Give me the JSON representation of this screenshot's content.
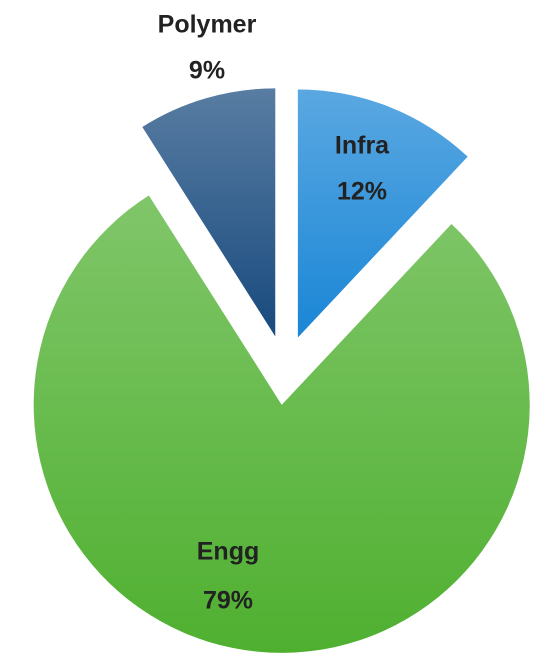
{
  "chart_data": {
    "type": "pie",
    "categories": [
      "Infra",
      "Engg",
      "Polymer"
    ],
    "values": [
      12,
      79,
      9
    ],
    "value_labels": [
      "12%",
      "79%",
      "9%"
    ],
    "colors": [
      "#1a86d6",
      "#4fb030",
      "#184a7e"
    ],
    "start_angle": 0,
    "direction": "clockwise",
    "exploded": true
  }
}
